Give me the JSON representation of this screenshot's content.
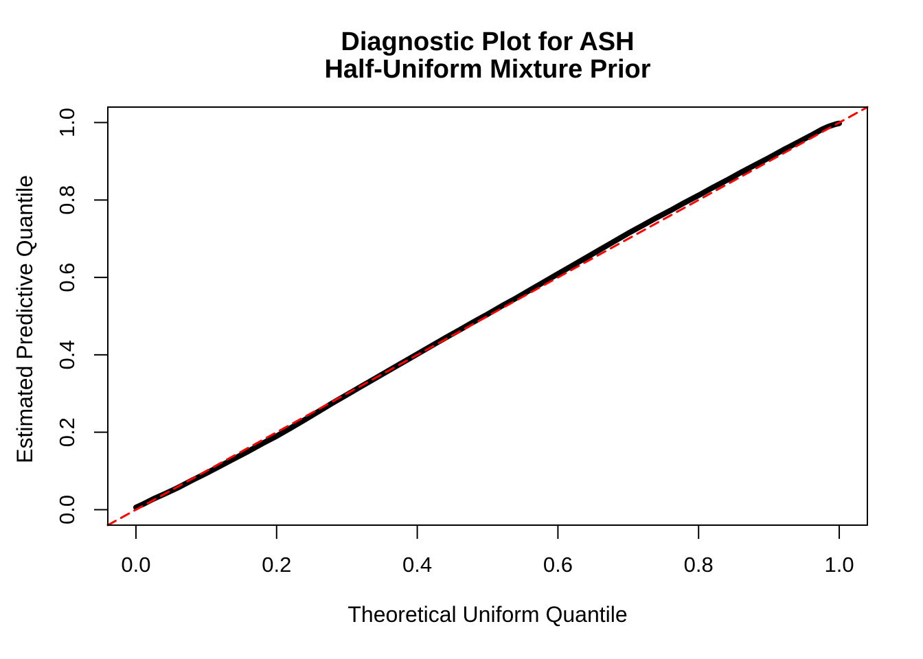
{
  "title": {
    "line1": "Diagnostic Plot for ASH",
    "line2": "Half-Uniform Mixture Prior"
  },
  "colors": {
    "background": "#FFFFFF",
    "axis": "#000000",
    "curve": "#000000",
    "reference": "#FF0000"
  },
  "chart_data": {
    "type": "line",
    "title": "Diagnostic Plot for ASH\nHalf-Uniform Mixture Prior",
    "xlabel": "Theoretical Uniform Quantile",
    "ylabel": "Estimated Predictive Quantile",
    "xlim": [
      -0.04,
      1.04
    ],
    "ylim": [
      -0.04,
      1.04
    ],
    "grid": false,
    "legend": null,
    "x_ticks": {
      "values": [
        0.0,
        0.2,
        0.4,
        0.6,
        0.8,
        1.0
      ],
      "labels": [
        "0.0",
        "0.2",
        "0.4",
        "0.6",
        "0.8",
        "1.0"
      ]
    },
    "y_ticks": {
      "values": [
        0.0,
        0.2,
        0.4,
        0.6,
        0.8,
        1.0
      ],
      "labels": [
        "0.0",
        "0.2",
        "0.4",
        "0.6",
        "0.8",
        "1.0"
      ]
    },
    "series": [
      {
        "name": "estimated-vs-theoretical-quantiles",
        "style": "solid",
        "color": "#000000",
        "stroke_width": 8,
        "x": [
          0.0,
          0.01,
          0.025,
          0.04,
          0.06,
          0.08,
          0.1,
          0.12,
          0.14,
          0.16,
          0.18,
          0.2,
          0.22,
          0.24,
          0.26,
          0.28,
          0.3,
          0.32,
          0.34,
          0.36,
          0.38,
          0.4,
          0.42,
          0.44,
          0.46,
          0.48,
          0.5,
          0.52,
          0.54,
          0.56,
          0.58,
          0.6,
          0.62,
          0.64,
          0.66,
          0.68,
          0.7,
          0.72,
          0.74,
          0.76,
          0.78,
          0.8,
          0.82,
          0.84,
          0.86,
          0.88,
          0.9,
          0.92,
          0.94,
          0.96,
          0.975,
          0.985,
          0.995,
          1.0
        ],
        "y": [
          0.006,
          0.014,
          0.028,
          0.04,
          0.057,
          0.076,
          0.094,
          0.113,
          0.132,
          0.151,
          0.171,
          0.19,
          0.211,
          0.232,
          0.254,
          0.276,
          0.297,
          0.318,
          0.339,
          0.36,
          0.381,
          0.402,
          0.423,
          0.444,
          0.464,
          0.485,
          0.505,
          0.526,
          0.546,
          0.567,
          0.588,
          0.609,
          0.63,
          0.651,
          0.672,
          0.693,
          0.714,
          0.734,
          0.754,
          0.773,
          0.793,
          0.812,
          0.832,
          0.851,
          0.871,
          0.89,
          0.909,
          0.929,
          0.948,
          0.967,
          0.982,
          0.99,
          0.996,
          0.998
        ]
      },
      {
        "name": "reference-line-y-equals-x",
        "style": "dashed",
        "color": "#FF0000",
        "stroke_width": 3,
        "x": [
          -0.04,
          1.04
        ],
        "y": [
          -0.04,
          1.04
        ]
      }
    ]
  }
}
